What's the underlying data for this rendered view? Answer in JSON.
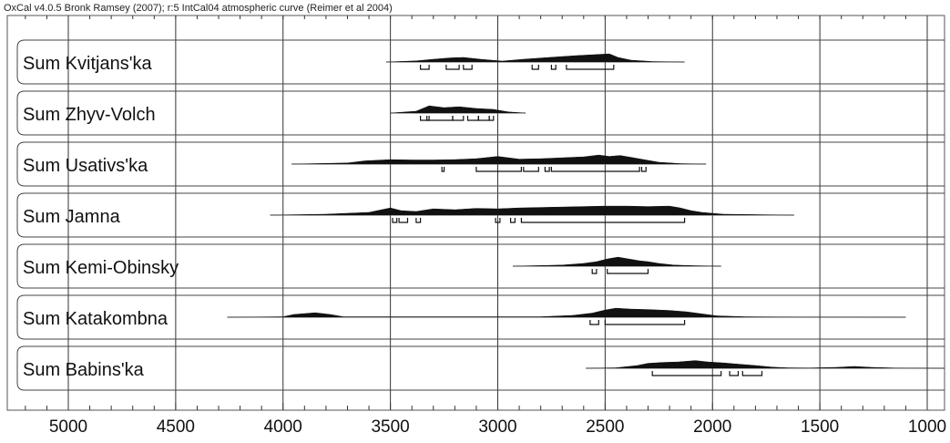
{
  "chart_data": {
    "type": "area",
    "title": "OxCal v4.0.5 Bronk Ramsey (2007); r:5 IntCal04 atmospheric curve (Reimer et al 2004)",
    "xlabel": "",
    "ylabel": "",
    "x_direction": "descending",
    "xlim": [
      5300,
      920
    ],
    "x_ticks": [
      5000,
      4500,
      4000,
      3500,
      3000,
      2500,
      2000,
      1500,
      1000
    ],
    "grid": true,
    "series": [
      {
        "name": "Sum Kvitjans'ka",
        "extent": [
          3520,
          2130
        ],
        "peaks": [
          [
            3380,
            0.12
          ],
          [
            3300,
            0.3
          ],
          [
            3220,
            0.45
          ],
          [
            3160,
            0.5
          ],
          [
            3080,
            0.3
          ],
          [
            2980,
            0.1
          ],
          [
            2880,
            0.3
          ],
          [
            2760,
            0.5
          ],
          [
            2640,
            0.7
          ],
          [
            2560,
            0.8
          ],
          [
            2480,
            0.9
          ],
          [
            2440,
            0.5
          ],
          [
            2380,
            0.2
          ],
          [
            2280,
            0.05
          ]
        ],
        "ranges": [
          [
            3360,
            3320
          ],
          [
            3240,
            3180
          ],
          [
            3160,
            3120
          ],
          [
            2840,
            2810
          ],
          [
            2750,
            2730
          ],
          [
            2680,
            2460
          ]
        ]
      },
      {
        "name": "Sum Zhyv-Volch",
        "extent": [
          3500,
          2870
        ],
        "peaks": [
          [
            3380,
            0.2
          ],
          [
            3320,
            0.8
          ],
          [
            3250,
            0.6
          ],
          [
            3180,
            0.7
          ],
          [
            3100,
            0.5
          ],
          [
            3020,
            0.4
          ],
          [
            2950,
            0.12
          ]
        ],
        "ranges": [
          [
            3360,
            3320
          ],
          [
            3330,
            3210
          ],
          [
            3210,
            3160
          ],
          [
            3140,
            3090
          ],
          [
            3090,
            3040
          ],
          [
            3040,
            3020
          ]
        ]
      },
      {
        "name": "Sum Usativs'ka",
        "extent": [
          3960,
          2030
        ],
        "peaks": [
          [
            3700,
            0.12
          ],
          [
            3620,
            0.35
          ],
          [
            3500,
            0.5
          ],
          [
            3400,
            0.45
          ],
          [
            3300,
            0.45
          ],
          [
            3200,
            0.5
          ],
          [
            3100,
            0.6
          ],
          [
            3000,
            0.85
          ],
          [
            2900,
            0.55
          ],
          [
            2800,
            0.6
          ],
          [
            2700,
            0.7
          ],
          [
            2600,
            0.8
          ],
          [
            2530,
            1.0
          ],
          [
            2480,
            0.85
          ],
          [
            2430,
            0.95
          ],
          [
            2380,
            0.75
          ],
          [
            2320,
            0.5
          ],
          [
            2250,
            0.2
          ],
          [
            2150,
            0.05
          ]
        ],
        "ranges": [
          [
            3260,
            3250
          ],
          [
            3100,
            2890
          ],
          [
            2880,
            2810
          ],
          [
            2780,
            2760
          ],
          [
            2750,
            2340
          ],
          [
            2330,
            2310
          ]
        ]
      },
      {
        "name": "Sum Jamna",
        "extent": [
          4060,
          1620
        ],
        "peaks": [
          [
            3800,
            0.1
          ],
          [
            3600,
            0.3
          ],
          [
            3500,
            0.8
          ],
          [
            3450,
            0.5
          ],
          [
            3380,
            0.4
          ],
          [
            3300,
            0.7
          ],
          [
            3200,
            0.6
          ],
          [
            3100,
            0.75
          ],
          [
            3000,
            0.7
          ],
          [
            2900,
            0.8
          ],
          [
            2800,
            0.85
          ],
          [
            2700,
            0.9
          ],
          [
            2600,
            0.95
          ],
          [
            2500,
            1.0
          ],
          [
            2400,
            1.0
          ],
          [
            2300,
            0.95
          ],
          [
            2200,
            1.0
          ],
          [
            2150,
            0.8
          ],
          [
            2100,
            0.5
          ],
          [
            2050,
            0.3
          ],
          [
            1950,
            0.1
          ]
        ],
        "ranges": [
          [
            3490,
            3470
          ],
          [
            3460,
            3420
          ],
          [
            3380,
            3360
          ],
          [
            3010,
            2990
          ],
          [
            2940,
            2920
          ],
          [
            2890,
            2130
          ]
        ]
      },
      {
        "name": "Sum Kemi-Obinsky",
        "extent": [
          2930,
          1960
        ],
        "peaks": [
          [
            2700,
            0.12
          ],
          [
            2600,
            0.3
          ],
          [
            2540,
            0.5
          ],
          [
            2490,
            0.8
          ],
          [
            2440,
            1.0
          ],
          [
            2390,
            0.8
          ],
          [
            2340,
            0.6
          ],
          [
            2300,
            0.5
          ],
          [
            2250,
            0.3
          ],
          [
            2180,
            0.12
          ],
          [
            2080,
            0.05
          ]
        ],
        "ranges": [
          [
            2560,
            2540
          ],
          [
            2490,
            2300
          ]
        ]
      },
      {
        "name": "Sum Katakombna",
        "extent": [
          4260,
          1100
        ],
        "peaks": [
          [
            4000,
            0.05
          ],
          [
            3950,
            0.3
          ],
          [
            3850,
            0.5
          ],
          [
            3780,
            0.3
          ],
          [
            3720,
            0.05
          ],
          [
            2800,
            0.05
          ],
          [
            2650,
            0.2
          ],
          [
            2560,
            0.45
          ],
          [
            2500,
            0.8
          ],
          [
            2450,
            1.0
          ],
          [
            2380,
            0.9
          ],
          [
            2300,
            0.85
          ],
          [
            2200,
            0.75
          ],
          [
            2120,
            0.6
          ],
          [
            2060,
            0.4
          ],
          [
            1980,
            0.15
          ],
          [
            1850,
            0.05
          ],
          [
            1700,
            0.03
          ]
        ],
        "ranges": [
          [
            2570,
            2530
          ],
          [
            2500,
            2130
          ]
        ]
      },
      {
        "name": "Sum Babins'ka",
        "extent": [
          2590,
          920
        ],
        "peaks": [
          [
            2450,
            0.05
          ],
          [
            2350,
            0.3
          ],
          [
            2300,
            0.55
          ],
          [
            2230,
            0.65
          ],
          [
            2160,
            0.7
          ],
          [
            2080,
            0.85
          ],
          [
            2020,
            0.7
          ],
          [
            1950,
            0.6
          ],
          [
            1880,
            0.45
          ],
          [
            1800,
            0.3
          ],
          [
            1720,
            0.12
          ],
          [
            1650,
            0.05
          ],
          [
            1550,
            0.03
          ],
          [
            1420,
            0.1
          ],
          [
            1340,
            0.2
          ],
          [
            1260,
            0.1
          ],
          [
            1150,
            0.03
          ]
        ],
        "ranges": [
          [
            2280,
            1960
          ],
          [
            1920,
            1880
          ],
          [
            1860,
            1770
          ]
        ]
      }
    ]
  }
}
